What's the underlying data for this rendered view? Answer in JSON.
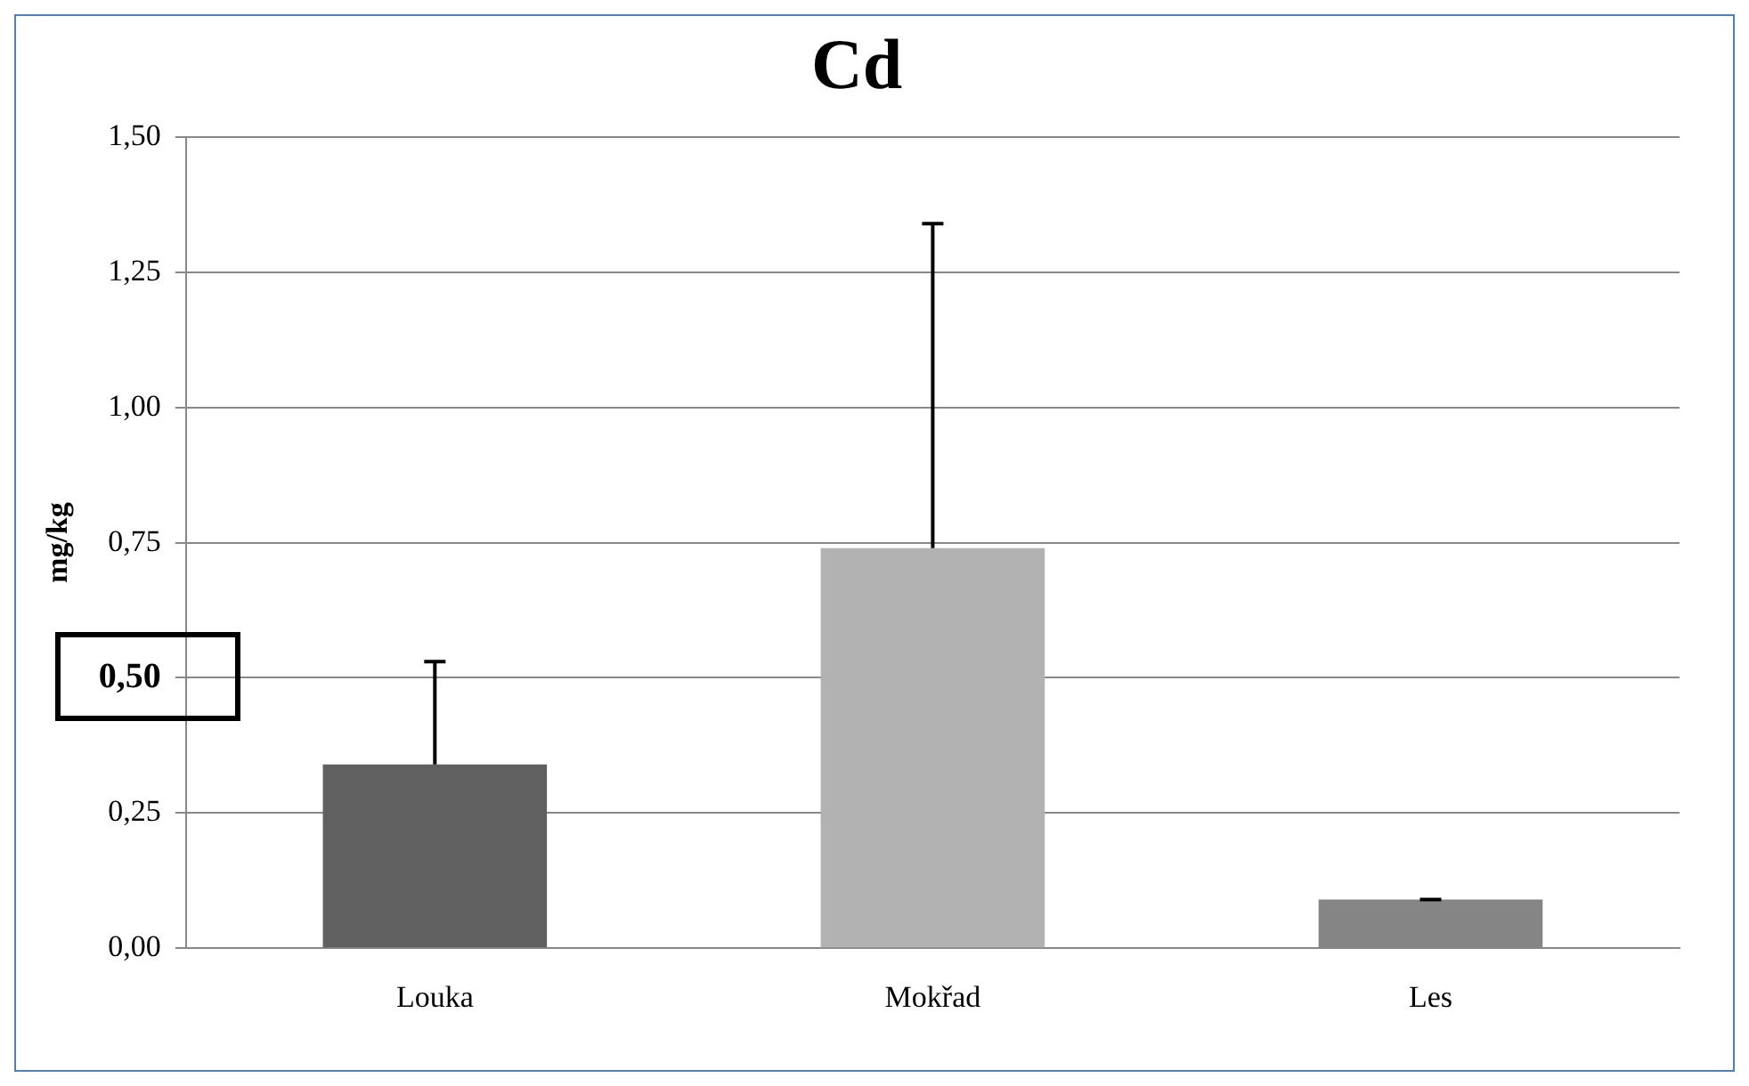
{
  "chart_data": {
    "type": "bar",
    "title": "Cd",
    "ylabel": "mg/kg",
    "categories": [
      "Louka",
      "Mokřad",
      "Les"
    ],
    "values": [
      0.34,
      0.74,
      0.09
    ],
    "colors": [
      "#606060",
      "#b2b2b2",
      "#858585"
    ],
    "errors": [
      [
        0.34,
        0.53
      ],
      [
        0.74,
        1.34
      ],
      [
        0.09,
        0.09
      ]
    ],
    "ylim": [
      0,
      1.5
    ],
    "yticks": [
      {
        "value": 0,
        "label": "0,00"
      },
      {
        "value": 0.25,
        "label": "0,25"
      },
      {
        "value": 0.5,
        "label": "0,50"
      },
      {
        "value": 0.75,
        "label": "0,75"
      },
      {
        "value": 1,
        "label": "1,00"
      },
      {
        "value": 1.25,
        "label": "1,25"
      },
      {
        "value": 1.5,
        "label": "1,50"
      }
    ],
    "grid": "y",
    "legend": false
  }
}
